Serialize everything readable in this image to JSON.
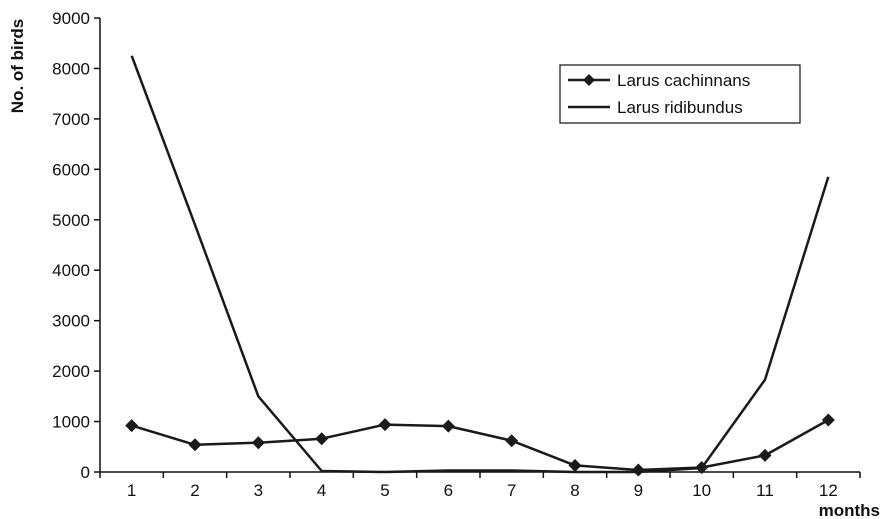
{
  "chart_data": {
    "type": "line",
    "title": "",
    "xlabel": "months",
    "ylabel": "No. of birds",
    "x": [
      1,
      2,
      3,
      4,
      5,
      6,
      7,
      8,
      9,
      10,
      11,
      12
    ],
    "x_tick_labels": [
      "1",
      "2",
      "3",
      "4",
      "5",
      "6",
      "7",
      "8",
      "9",
      "10",
      "11",
      "12"
    ],
    "y_tick_labels": [
      "0",
      "1000",
      "2000",
      "3000",
      "4000",
      "5000",
      "6000",
      "7000",
      "8000",
      "9000"
    ],
    "ylim": [
      0,
      9000
    ],
    "grid": false,
    "legend_position": "top-right",
    "series": [
      {
        "name": "Larus cachinnans",
        "marker": "diamond",
        "color": "#1a1a1a",
        "values": [
          920,
          540,
          580,
          660,
          940,
          910,
          620,
          130,
          40,
          90,
          330,
          1030
        ]
      },
      {
        "name": "Larus ridibundus",
        "marker": "none",
        "color": "#1a1a1a",
        "values": [
          8250,
          4900,
          1500,
          20,
          0,
          30,
          30,
          0,
          0,
          80,
          1830,
          5850
        ]
      }
    ]
  }
}
